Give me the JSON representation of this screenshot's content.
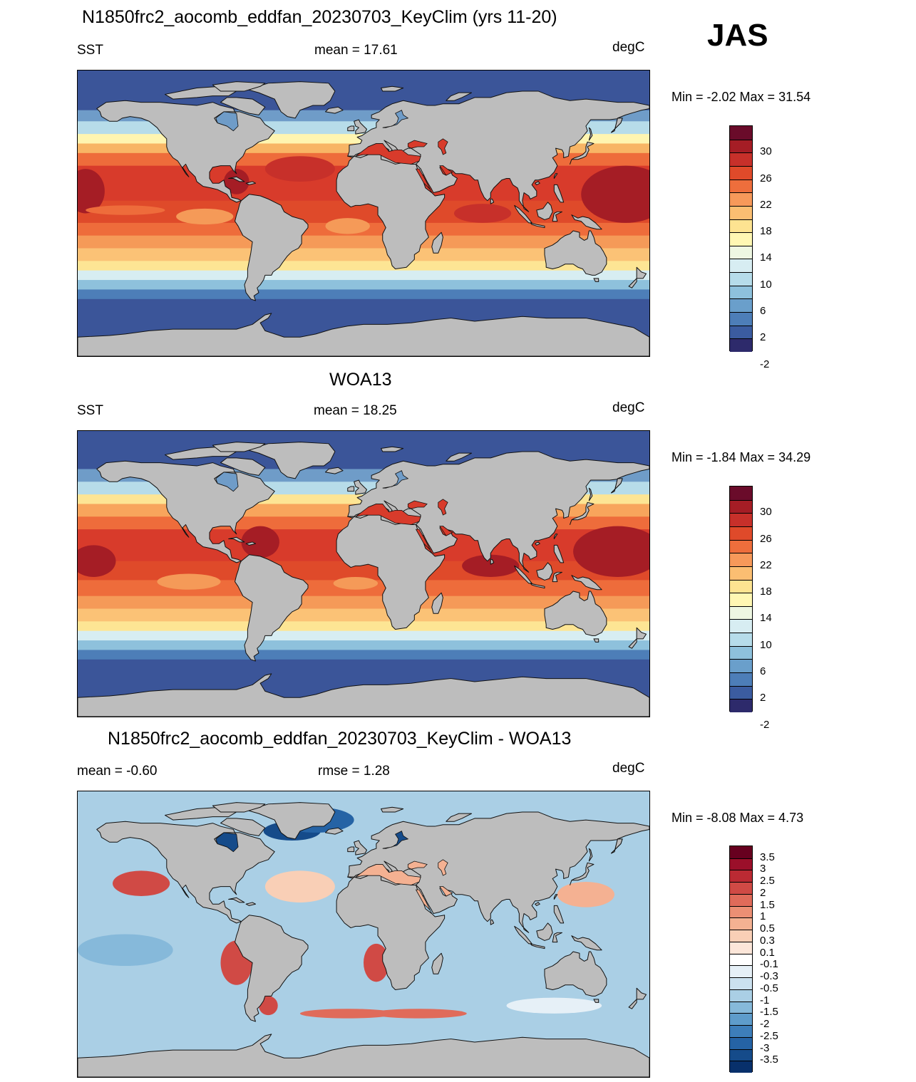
{
  "season": "JAS",
  "panels": [
    {
      "title": "N1850frc2_aocomb_eddfan_20230703_KeyClim (yrs 11-20)",
      "left": "SST",
      "center": "mean =  17.61",
      "right": "degC",
      "minmax": "Min =  -2.02 Max =  31.54",
      "field": "sst_model",
      "colorbar": {
        "colors": [
          "#6a0b2a",
          "#a51d25",
          "#c7302a",
          "#df4a2a",
          "#ee6e3c",
          "#f7995a",
          "#fbbe72",
          "#fde391",
          "#fff7b3",
          "#eef7e2",
          "#d7edf2",
          "#b6dcea",
          "#8ec1dc",
          "#6a9fcb",
          "#4d7eb8",
          "#3b5ca0",
          "#2d2a6b"
        ],
        "labels": [
          "30",
          "26",
          "22",
          "18",
          "14",
          "10",
          "6",
          "2",
          "-2"
        ]
      }
    },
    {
      "title": "WOA13",
      "left": "SST",
      "center": "mean =  18.25",
      "right": "degC",
      "minmax": "Min =  -1.84 Max =  34.29",
      "field": "sst_obs",
      "colorbar": {
        "colors": [
          "#6a0b2a",
          "#a51d25",
          "#c7302a",
          "#df4a2a",
          "#ee6e3c",
          "#f7995a",
          "#fbbe72",
          "#fde391",
          "#fff7b3",
          "#eef7e2",
          "#d7edf2",
          "#b6dcea",
          "#8ec1dc",
          "#6a9fcb",
          "#4d7eb8",
          "#3b5ca0",
          "#2d2a6b"
        ],
        "labels": [
          "30",
          "26",
          "22",
          "18",
          "14",
          "10",
          "6",
          "2",
          "-2"
        ]
      }
    },
    {
      "title": "N1850frc2_aocomb_eddfan_20230703_KeyClim - WOA13",
      "left": "mean =  -0.60",
      "center": "rmse =   1.28",
      "right": "degC",
      "minmax": "Min =  -8.08 Max =   4.73",
      "field": "diff",
      "colorbar": {
        "colors": [
          "#67001f",
          "#9b0f2a",
          "#bb2a33",
          "#d04a45",
          "#e06b5a",
          "#ec8f74",
          "#f4b192",
          "#f9cfb6",
          "#fce6d9",
          "#ffffff",
          "#e6f0f7",
          "#cbe1ef",
          "#aacfe5",
          "#86b9da",
          "#5e9ccb",
          "#3d7eba",
          "#2563a5",
          "#154b8a",
          "#08306b"
        ],
        "labels": [
          "3.5",
          "3",
          "2.5",
          "2",
          "1.5",
          "1",
          "0.5",
          "0.3",
          "0.1",
          "-0.1",
          "-0.3",
          "-0.5",
          "-1",
          "-1.5",
          "-2",
          "-2.5",
          "-3",
          "-3.5"
        ]
      }
    }
  ]
}
